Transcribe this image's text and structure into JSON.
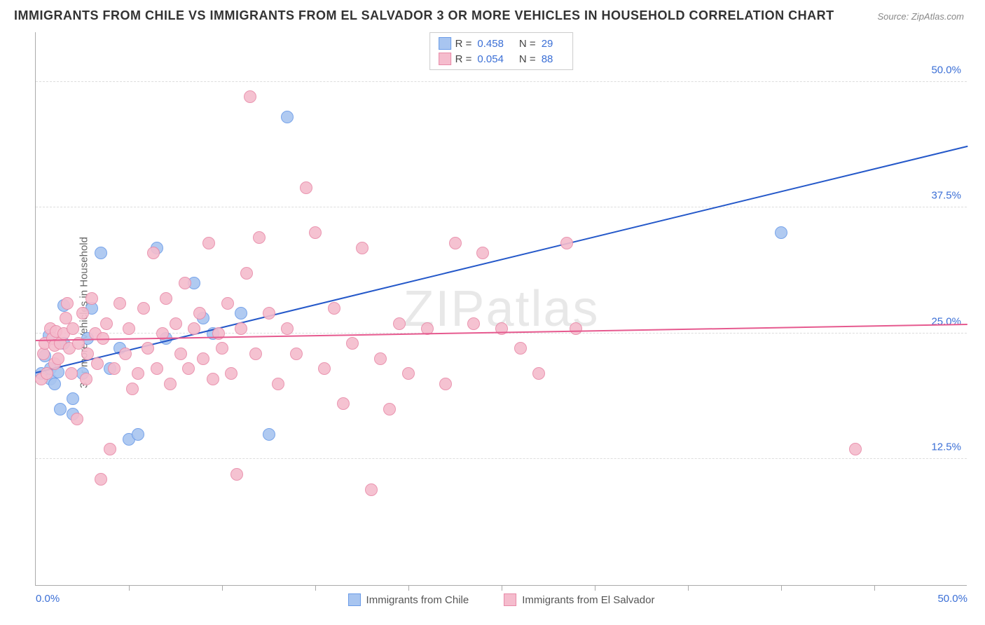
{
  "title": "IMMIGRANTS FROM CHILE VS IMMIGRANTS FROM EL SALVADOR 3 OR MORE VEHICLES IN HOUSEHOLD CORRELATION CHART",
  "source": "Source: ZipAtlas.com",
  "ylabel": "3 or more Vehicles in Household",
  "watermark": "ZIPatlas",
  "chart": {
    "type": "scatter",
    "background_color": "#ffffff",
    "grid_color": "#dddddd",
    "axis_color": "#aaaaaa",
    "xlim": [
      0,
      50
    ],
    "ylim": [
      0,
      55
    ],
    "yticks": [
      {
        "value": 12.5,
        "label": "12.5%"
      },
      {
        "value": 25.0,
        "label": "25.0%"
      },
      {
        "value": 37.5,
        "label": "37.5%"
      },
      {
        "value": 50.0,
        "label": "50.0%"
      }
    ],
    "xticks_major": [
      0,
      50
    ],
    "xtick_labels": [
      "0.0%",
      "50.0%"
    ],
    "xticks_minor_step": 5,
    "tick_label_color": "#3b6fd6",
    "label_fontsize": 15,
    "title_fontsize": 18,
    "marker_radius": 9,
    "marker_border_width": 1.2,
    "marker_fill_opacity": 0.35,
    "series": [
      {
        "name": "Immigrants from Chile",
        "color_border": "#6a9be8",
        "color_fill": "#a8c5f0",
        "R": "0.458",
        "N": "29",
        "trend": {
          "x1": 0,
          "y1": 21.0,
          "x2": 50,
          "y2": 43.5,
          "color": "#2458c9",
          "width": 2
        },
        "points": [
          [
            0.3,
            21.0
          ],
          [
            0.5,
            22.8
          ],
          [
            0.7,
            24.8
          ],
          [
            0.8,
            20.5
          ],
          [
            0.8,
            21.5
          ],
          [
            1.0,
            20.0
          ],
          [
            1.2,
            21.2
          ],
          [
            1.3,
            17.5
          ],
          [
            1.5,
            24.0
          ],
          [
            1.5,
            27.8
          ],
          [
            2.0,
            17.0
          ],
          [
            2.0,
            18.5
          ],
          [
            2.5,
            21.0
          ],
          [
            2.8,
            24.5
          ],
          [
            3.0,
            27.5
          ],
          [
            3.5,
            33.0
          ],
          [
            4.0,
            21.5
          ],
          [
            4.5,
            23.5
          ],
          [
            5.0,
            14.5
          ],
          [
            5.5,
            15.0
          ],
          [
            6.5,
            33.5
          ],
          [
            7.0,
            24.5
          ],
          [
            8.5,
            30.0
          ],
          [
            9.0,
            26.5
          ],
          [
            9.5,
            25.0
          ],
          [
            11.0,
            27.0
          ],
          [
            12.5,
            15.0
          ],
          [
            13.5,
            46.5
          ],
          [
            40.0,
            35.0
          ]
        ]
      },
      {
        "name": "Immigrants from El Salvador",
        "color_border": "#e88aa8",
        "color_fill": "#f5bccd",
        "R": "0.054",
        "N": "88",
        "trend": {
          "x1": 0,
          "y1": 24.2,
          "x2": 50,
          "y2": 25.8,
          "color": "#e65a8f",
          "width": 2
        },
        "points": [
          [
            0.3,
            20.5
          ],
          [
            0.4,
            23.0
          ],
          [
            0.5,
            24.0
          ],
          [
            0.6,
            21.0
          ],
          [
            0.8,
            25.5
          ],
          [
            0.9,
            24.5
          ],
          [
            1.0,
            23.8
          ],
          [
            1.0,
            22.0
          ],
          [
            1.1,
            25.2
          ],
          [
            1.2,
            22.5
          ],
          [
            1.3,
            24.0
          ],
          [
            1.5,
            25.0
          ],
          [
            1.6,
            26.5
          ],
          [
            1.7,
            28.0
          ],
          [
            1.8,
            23.5
          ],
          [
            1.9,
            21.0
          ],
          [
            2.0,
            25.5
          ],
          [
            2.2,
            16.5
          ],
          [
            2.3,
            24.0
          ],
          [
            2.5,
            27.0
          ],
          [
            2.7,
            20.5
          ],
          [
            2.8,
            23.0
          ],
          [
            3.0,
            28.5
          ],
          [
            3.2,
            25.0
          ],
          [
            3.3,
            22.0
          ],
          [
            3.5,
            10.5
          ],
          [
            3.6,
            24.5
          ],
          [
            3.8,
            26.0
          ],
          [
            4.0,
            13.5
          ],
          [
            4.2,
            21.5
          ],
          [
            4.5,
            28.0
          ],
          [
            4.8,
            23.0
          ],
          [
            5.0,
            25.5
          ],
          [
            5.2,
            19.5
          ],
          [
            5.5,
            21.0
          ],
          [
            5.8,
            27.5
          ],
          [
            6.0,
            23.5
          ],
          [
            6.3,
            33.0
          ],
          [
            6.5,
            21.5
          ],
          [
            6.8,
            25.0
          ],
          [
            7.0,
            28.5
          ],
          [
            7.2,
            20.0
          ],
          [
            7.5,
            26.0
          ],
          [
            7.8,
            23.0
          ],
          [
            8.0,
            30.0
          ],
          [
            8.2,
            21.5
          ],
          [
            8.5,
            25.5
          ],
          [
            8.8,
            27.0
          ],
          [
            9.0,
            22.5
          ],
          [
            9.3,
            34.0
          ],
          [
            9.5,
            20.5
          ],
          [
            9.8,
            25.0
          ],
          [
            10.0,
            23.5
          ],
          [
            10.3,
            28.0
          ],
          [
            10.5,
            21.0
          ],
          [
            10.8,
            11.0
          ],
          [
            11.0,
            25.5
          ],
          [
            11.3,
            31.0
          ],
          [
            11.5,
            48.5
          ],
          [
            11.8,
            23.0
          ],
          [
            12.0,
            34.5
          ],
          [
            12.5,
            27.0
          ],
          [
            13.0,
            20.0
          ],
          [
            13.5,
            25.5
          ],
          [
            14.0,
            23.0
          ],
          [
            14.5,
            39.5
          ],
          [
            15.0,
            35.0
          ],
          [
            15.5,
            21.5
          ],
          [
            16.0,
            27.5
          ],
          [
            16.5,
            18.0
          ],
          [
            17.0,
            24.0
          ],
          [
            17.5,
            33.5
          ],
          [
            18.0,
            9.5
          ],
          [
            18.5,
            22.5
          ],
          [
            19.0,
            17.5
          ],
          [
            19.5,
            26.0
          ],
          [
            20.0,
            21.0
          ],
          [
            21.0,
            25.5
          ],
          [
            22.0,
            20.0
          ],
          [
            22.5,
            34.0
          ],
          [
            23.5,
            26.0
          ],
          [
            24.0,
            33.0
          ],
          [
            25.0,
            25.5
          ],
          [
            26.0,
            23.5
          ],
          [
            27.0,
            21.0
          ],
          [
            28.5,
            34.0
          ],
          [
            29.0,
            25.5
          ],
          [
            44.0,
            13.5
          ]
        ]
      }
    ]
  },
  "legend_top": {
    "r_label": "R =",
    "n_label": "N ="
  },
  "legend_bottom": [
    "Immigrants from Chile",
    "Immigrants from El Salvador"
  ]
}
